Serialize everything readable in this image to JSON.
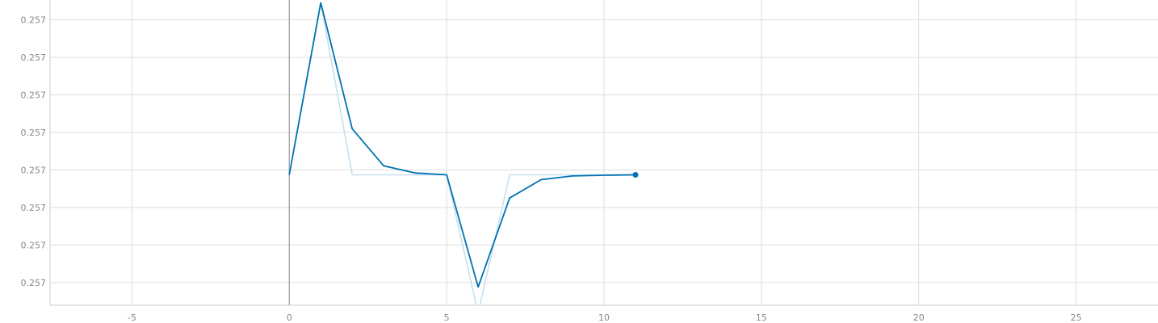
{
  "chart_data": {
    "type": "line",
    "title": "",
    "xlabel": "",
    "ylabel": "",
    "grid": true,
    "xlim": [
      -7.6,
      27.6
    ],
    "x_ticks": [
      -5,
      0,
      5,
      10,
      15,
      20,
      25
    ],
    "y_tick_labels": [
      "0.257",
      "0.257",
      "0.257",
      "0.257",
      "0.257",
      "0.257",
      "0.257",
      "0.257"
    ],
    "series": [
      {
        "role": "raw",
        "color": "#c6dff0",
        "x": [
          0,
          1,
          2,
          3,
          4,
          5,
          6,
          7,
          8,
          9,
          10,
          11
        ],
        "y": [
          0.0,
          4.6,
          0.0,
          0.0,
          0.0,
          0.0,
          -3.7,
          0.0,
          0.0,
          0.0,
          0.0,
          0.0
        ]
      },
      {
        "role": "smoothed",
        "color": "#0072b2",
        "x": [
          0,
          1,
          2,
          3,
          4,
          5,
          6,
          7,
          8,
          9,
          10,
          11
        ],
        "y": [
          0.0,
          4.6,
          1.23,
          0.24,
          0.05,
          0.0,
          -3.0,
          -0.62,
          -0.13,
          -0.03,
          -0.01,
          0.0
        ]
      }
    ]
  }
}
